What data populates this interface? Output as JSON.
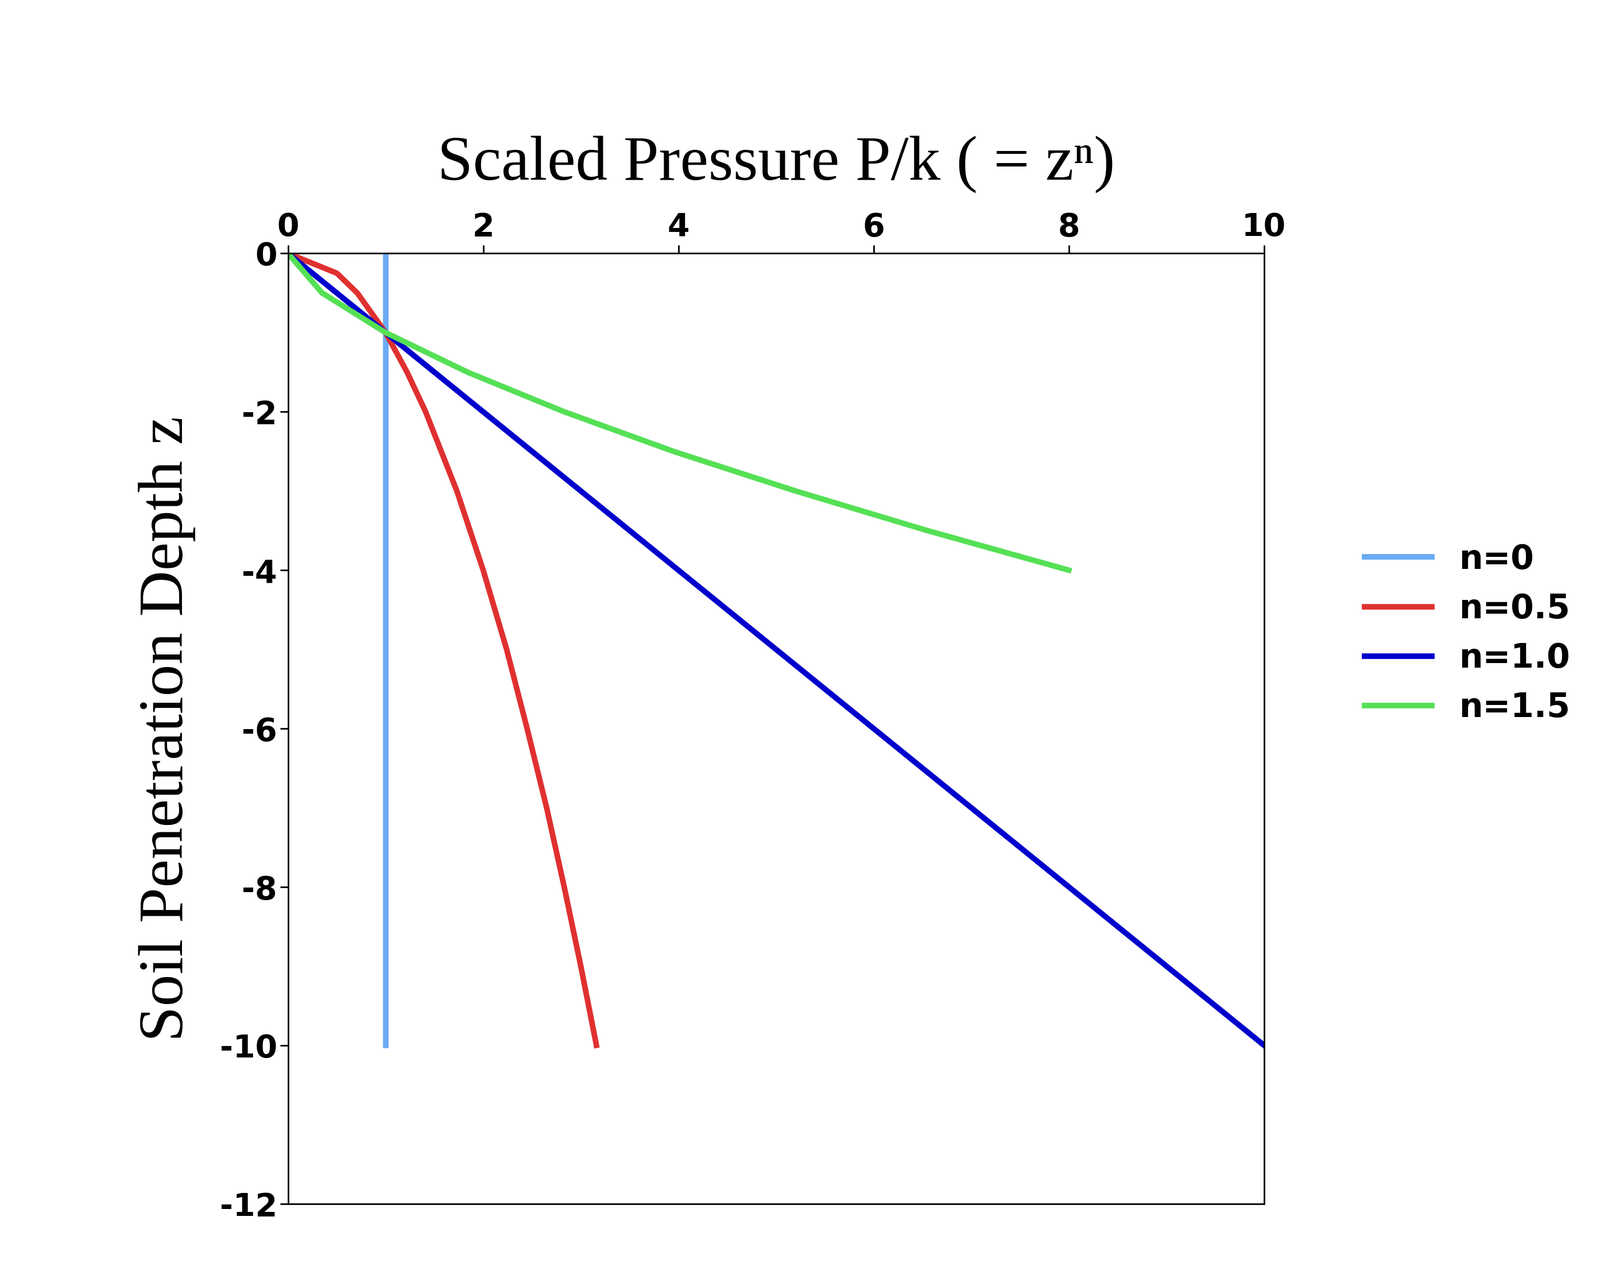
{
  "chart_data": {
    "type": "line",
    "title": "Scaled Pressure P/k ( = zⁿ)",
    "y_label": "Soil Penetration Depth z",
    "xlim": [
      0,
      10
    ],
    "xticks": [
      0,
      2,
      4,
      6,
      8,
      10
    ],
    "ylim": [
      -12,
      0
    ],
    "yticks": [
      0,
      -2,
      -4,
      -6,
      -8,
      -10,
      -12
    ],
    "grid": false,
    "legend": "center right",
    "series": [
      {
        "name": "n=0",
        "color": "#6aaaf5",
        "x": [
          1,
          1
        ],
        "values": [
          0,
          -10
        ]
      },
      {
        "name": "n=0.5",
        "color": "#e03030",
        "x": [
          0,
          0.5,
          0.71,
          1,
          1.22,
          1.41,
          1.73,
          2,
          2.24,
          2.45,
          2.65,
          2.83,
          3,
          3.16
        ],
        "values": [
          0,
          -0.25,
          -0.5,
          -1,
          -1.5,
          -2,
          -3,
          -4,
          -5,
          -6,
          -7,
          -8,
          -9,
          -10
        ]
      },
      {
        "name": "n=1.0",
        "color": "#0000cc",
        "x": [
          0,
          10
        ],
        "values": [
          0,
          -10
        ]
      },
      {
        "name": "n=1.5",
        "color": "#55e055",
        "x": [
          0,
          0.35,
          1,
          1.84,
          2.83,
          3.95,
          5.2,
          6.55,
          8
        ],
        "values": [
          0,
          -0.5,
          -1,
          -1.5,
          -2,
          -2.5,
          -3,
          -3.5,
          -4
        ]
      }
    ]
  }
}
